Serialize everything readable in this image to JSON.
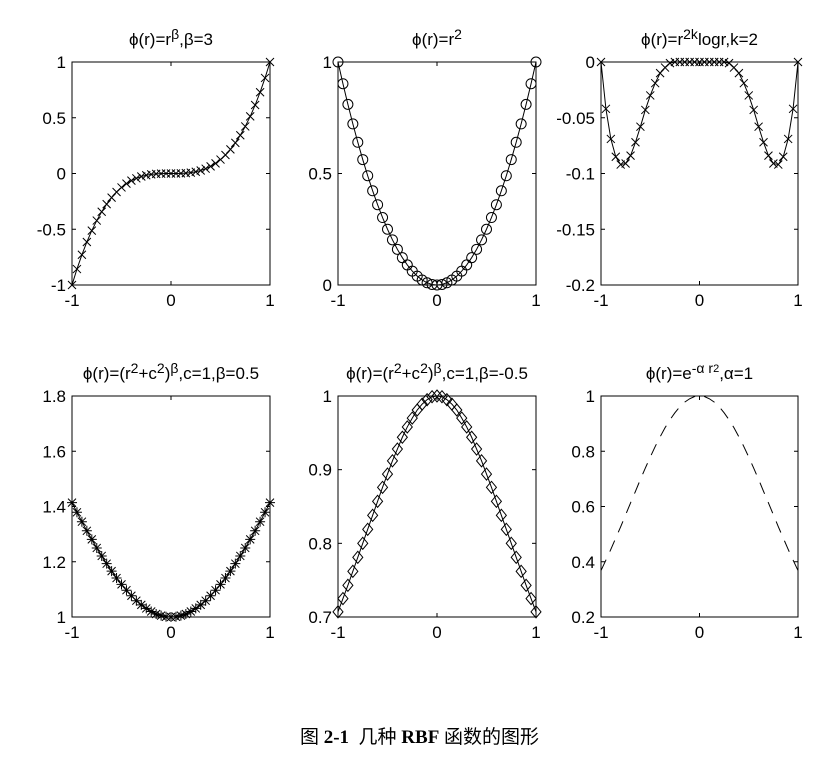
{
  "chart_data": [
    {
      "type": "line",
      "title": "ϕ(r)=rβ,β=3",
      "title_parts": [
        [
          "ϕ(r)=r",
          ""
        ],
        [
          "β",
          "sup"
        ],
        [
          ",β=3",
          ""
        ]
      ],
      "xlim": [
        -1,
        1
      ],
      "ylim": [
        -1,
        1
      ],
      "xticks": [
        -1,
        0,
        1
      ],
      "xtick_labels": [
        "-1",
        "0",
        "1"
      ],
      "yticks": [
        -1,
        -0.5,
        0,
        0.5,
        1
      ],
      "ytick_labels": [
        "-1",
        "-0.5",
        "0",
        "0.5",
        "1"
      ],
      "marker": "x",
      "line_style": "solid",
      "x": [
        -1,
        -0.95,
        -0.9,
        -0.85,
        -0.8,
        -0.75,
        -0.7,
        -0.65,
        -0.6,
        -0.55,
        -0.5,
        -0.45,
        -0.4,
        -0.35,
        -0.3,
        -0.25,
        -0.2,
        -0.15,
        -0.1,
        -0.05,
        0,
        0.05,
        0.1,
        0.15,
        0.2,
        0.25,
        0.3,
        0.35,
        0.4,
        0.45,
        0.5,
        0.55,
        0.6,
        0.65,
        0.7,
        0.75,
        0.8,
        0.85,
        0.9,
        0.95,
        1
      ],
      "y": [
        -1,
        -0.857,
        -0.729,
        -0.614,
        -0.512,
        -0.422,
        -0.343,
        -0.275,
        -0.216,
        -0.166,
        -0.125,
        -0.091,
        -0.064,
        -0.043,
        -0.027,
        -0.016,
        -0.008,
        -0.003,
        -0.001,
        0,
        0,
        0,
        0.001,
        0.003,
        0.008,
        0.016,
        0.027,
        0.043,
        0.064,
        0.091,
        0.125,
        0.166,
        0.216,
        0.275,
        0.343,
        0.422,
        0.512,
        0.614,
        0.729,
        0.857,
        1
      ]
    },
    {
      "type": "line",
      "title": "ϕ(r)=r2",
      "title_parts": [
        [
          "ϕ(r)=r",
          ""
        ],
        [
          "2",
          "sup"
        ]
      ],
      "xlim": [
        -1,
        1
      ],
      "ylim": [
        0,
        1
      ],
      "xticks": [
        -1,
        0,
        1
      ],
      "xtick_labels": [
        "-1",
        "0",
        "1"
      ],
      "yticks": [
        0,
        0.5,
        1
      ],
      "ytick_labels": [
        "0",
        "0.5",
        "1"
      ],
      "marker": "o",
      "line_style": "solid",
      "x": [
        -1,
        -0.95,
        -0.9,
        -0.85,
        -0.8,
        -0.75,
        -0.7,
        -0.65,
        -0.6,
        -0.55,
        -0.5,
        -0.45,
        -0.4,
        -0.35,
        -0.3,
        -0.25,
        -0.2,
        -0.15,
        -0.1,
        -0.05,
        0,
        0.05,
        0.1,
        0.15,
        0.2,
        0.25,
        0.3,
        0.35,
        0.4,
        0.45,
        0.5,
        0.55,
        0.6,
        0.65,
        0.7,
        0.75,
        0.8,
        0.85,
        0.9,
        0.95,
        1
      ],
      "y": [
        1,
        0.9025,
        0.81,
        0.7225,
        0.64,
        0.5625,
        0.49,
        0.4225,
        0.36,
        0.3025,
        0.25,
        0.2025,
        0.16,
        0.1225,
        0.09,
        0.0625,
        0.04,
        0.0225,
        0.01,
        0.0025,
        0,
        0.0025,
        0.01,
        0.0225,
        0.04,
        0.0625,
        0.09,
        0.1225,
        0.16,
        0.2025,
        0.25,
        0.3025,
        0.36,
        0.4225,
        0.49,
        0.5625,
        0.64,
        0.7225,
        0.81,
        0.9025,
        1
      ]
    },
    {
      "type": "line",
      "title": "ϕ(r)=r2klogr,k=2",
      "title_parts": [
        [
          "ϕ(r)=r",
          ""
        ],
        [
          "2k",
          "sup"
        ],
        [
          "logr,k=2",
          ""
        ]
      ],
      "xlim": [
        -1,
        1
      ],
      "ylim": [
        -0.2,
        0
      ],
      "xticks": [
        -1,
        0,
        1
      ],
      "xtick_labels": [
        "-1",
        "0",
        "1"
      ],
      "yticks": [
        -0.2,
        -0.15,
        -0.1,
        -0.05,
        0
      ],
      "ytick_labels": [
        "-0.2",
        "-0.15",
        "-0.1",
        "-0.05",
        "0"
      ],
      "marker": "x",
      "line_style": "solid",
      "x": [
        -1,
        -0.95,
        -0.9,
        -0.85,
        -0.8,
        -0.75,
        -0.7,
        -0.65,
        -0.6,
        -0.55,
        -0.5,
        -0.45,
        -0.4,
        -0.35,
        -0.3,
        -0.25,
        -0.2,
        -0.15,
        -0.1,
        -0.05,
        0,
        0.05,
        0.1,
        0.15,
        0.2,
        0.25,
        0.3,
        0.35,
        0.4,
        0.45,
        0.5,
        0.55,
        0.6,
        0.65,
        0.7,
        0.75,
        0.8,
        0.85,
        0.9,
        0.95,
        1
      ],
      "y": [
        0,
        -0.042,
        -0.069,
        -0.085,
        -0.092,
        -0.091,
        -0.084,
        -0.072,
        -0.058,
        -0.043,
        -0.03,
        -0.019,
        -0.01,
        -0.005,
        -0.001,
        0,
        0,
        0,
        0,
        0,
        0,
        0,
        0,
        0,
        0,
        0,
        -0.001,
        -0.005,
        -0.01,
        -0.019,
        -0.03,
        -0.043,
        -0.058,
        -0.072,
        -0.084,
        -0.091,
        -0.092,
        -0.085,
        -0.069,
        -0.042,
        0
      ]
    },
    {
      "type": "line",
      "title": "ϕ(r)=(r2+c2)β,c=1,β=0.5",
      "title_parts": [
        [
          "ϕ(r)=(r",
          ""
        ],
        [
          "2",
          "sup"
        ],
        [
          "+c",
          ""
        ],
        [
          "2",
          "sup"
        ],
        [
          ")",
          ""
        ],
        [
          "β",
          "sup"
        ],
        [
          ",c=1,β=0.5",
          ""
        ]
      ],
      "xlim": [
        -1,
        1
      ],
      "ylim": [
        1,
        1.8
      ],
      "xticks": [
        -1,
        0,
        1
      ],
      "xtick_labels": [
        "-1",
        "0",
        "1"
      ],
      "yticks": [
        1,
        1.2,
        1.4,
        1.6,
        1.8
      ],
      "ytick_labels": [
        "1",
        "1.2",
        "1.4",
        "1.6",
        "1.8"
      ],
      "marker": "star",
      "line_style": "solid",
      "x": [
        -1,
        -0.95,
        -0.9,
        -0.85,
        -0.8,
        -0.75,
        -0.7,
        -0.65,
        -0.6,
        -0.55,
        -0.5,
        -0.45,
        -0.4,
        -0.35,
        -0.3,
        -0.25,
        -0.2,
        -0.15,
        -0.1,
        -0.05,
        0,
        0.05,
        0.1,
        0.15,
        0.2,
        0.25,
        0.3,
        0.35,
        0.4,
        0.45,
        0.5,
        0.55,
        0.6,
        0.65,
        0.7,
        0.75,
        0.8,
        0.85,
        0.9,
        0.95,
        1
      ],
      "y": [
        1.414,
        1.379,
        1.345,
        1.312,
        1.281,
        1.25,
        1.221,
        1.193,
        1.166,
        1.141,
        1.118,
        1.097,
        1.077,
        1.059,
        1.044,
        1.031,
        1.02,
        1.011,
        1.005,
        1.001,
        1,
        1.001,
        1.005,
        1.011,
        1.02,
        1.031,
        1.044,
        1.059,
        1.077,
        1.097,
        1.118,
        1.141,
        1.166,
        1.193,
        1.221,
        1.25,
        1.281,
        1.312,
        1.345,
        1.379,
        1.414
      ]
    },
    {
      "type": "line",
      "title": "ϕ(r)=(r2+c2)β,c=1,β=-0.5",
      "title_parts": [
        [
          "ϕ(r)=(r",
          ""
        ],
        [
          "2",
          "sup"
        ],
        [
          "+c",
          ""
        ],
        [
          "2",
          "sup"
        ],
        [
          ")",
          ""
        ],
        [
          "β",
          "sup"
        ],
        [
          ",c=1,β=-0.5",
          ""
        ]
      ],
      "xlim": [
        -1,
        1
      ],
      "ylim": [
        0.7,
        1
      ],
      "xticks": [
        -1,
        0,
        1
      ],
      "xtick_labels": [
        "-1",
        "0",
        "1"
      ],
      "yticks": [
        0.7,
        0.8,
        0.9,
        1
      ],
      "ytick_labels": [
        "0.7",
        "0.8",
        "0.9",
        "1"
      ],
      "marker": "diamond",
      "line_style": "solid",
      "x": [
        -1,
        -0.95,
        -0.9,
        -0.85,
        -0.8,
        -0.75,
        -0.7,
        -0.65,
        -0.6,
        -0.55,
        -0.5,
        -0.45,
        -0.4,
        -0.35,
        -0.3,
        -0.25,
        -0.2,
        -0.15,
        -0.1,
        -0.05,
        0,
        0.05,
        0.1,
        0.15,
        0.2,
        0.25,
        0.3,
        0.35,
        0.4,
        0.45,
        0.5,
        0.55,
        0.6,
        0.65,
        0.7,
        0.75,
        0.8,
        0.85,
        0.9,
        0.95,
        1
      ],
      "y": [
        0.707,
        0.725,
        0.743,
        0.762,
        0.781,
        0.8,
        0.819,
        0.838,
        0.857,
        0.876,
        0.894,
        0.912,
        0.928,
        0.944,
        0.958,
        0.97,
        0.981,
        0.989,
        0.995,
        0.999,
        1,
        0.999,
        0.995,
        0.989,
        0.981,
        0.97,
        0.958,
        0.944,
        0.928,
        0.912,
        0.894,
        0.876,
        0.857,
        0.838,
        0.819,
        0.8,
        0.781,
        0.762,
        0.743,
        0.725,
        0.707
      ]
    },
    {
      "type": "line",
      "title": "ϕ(r)=e-α r2,α=1",
      "title_parts": [
        [
          "ϕ(r)=e",
          ""
        ],
        [
          "-α r",
          "sup"
        ],
        [
          "2",
          "sup2"
        ],
        [
          ",α=1",
          ""
        ]
      ],
      "xlim": [
        -1,
        1
      ],
      "ylim": [
        0.2,
        1
      ],
      "xticks": [
        -1,
        0,
        1
      ],
      "xtick_labels": [
        "-1",
        "0",
        "1"
      ],
      "yticks": [
        0.2,
        0.4,
        0.6,
        0.8,
        1
      ],
      "ytick_labels": [
        "0.2",
        "0.4",
        "0.6",
        "0.8",
        "1"
      ],
      "marker": "none",
      "line_style": "dashed",
      "x": [
        -1,
        -0.95,
        -0.9,
        -0.85,
        -0.8,
        -0.75,
        -0.7,
        -0.65,
        -0.6,
        -0.55,
        -0.5,
        -0.45,
        -0.4,
        -0.35,
        -0.3,
        -0.25,
        -0.2,
        -0.15,
        -0.1,
        -0.05,
        0,
        0.05,
        0.1,
        0.15,
        0.2,
        0.25,
        0.3,
        0.35,
        0.4,
        0.45,
        0.5,
        0.55,
        0.6,
        0.65,
        0.7,
        0.75,
        0.8,
        0.85,
        0.9,
        0.95,
        1
      ],
      "y": [
        0.368,
        0.406,
        0.445,
        0.486,
        0.527,
        0.57,
        0.613,
        0.655,
        0.698,
        0.739,
        0.779,
        0.817,
        0.852,
        0.885,
        0.914,
        0.939,
        0.961,
        0.978,
        0.99,
        0.998,
        1,
        0.998,
        0.99,
        0.978,
        0.961,
        0.939,
        0.914,
        0.885,
        0.852,
        0.817,
        0.779,
        0.739,
        0.698,
        0.655,
        0.613,
        0.57,
        0.527,
        0.486,
        0.445,
        0.406,
        0.368
      ]
    }
  ],
  "caption": {
    "prefix": "图 ",
    "number": "2-1",
    "text_before": "  几种 ",
    "rbf": "RBF",
    "text_after": " 函数的图形"
  }
}
